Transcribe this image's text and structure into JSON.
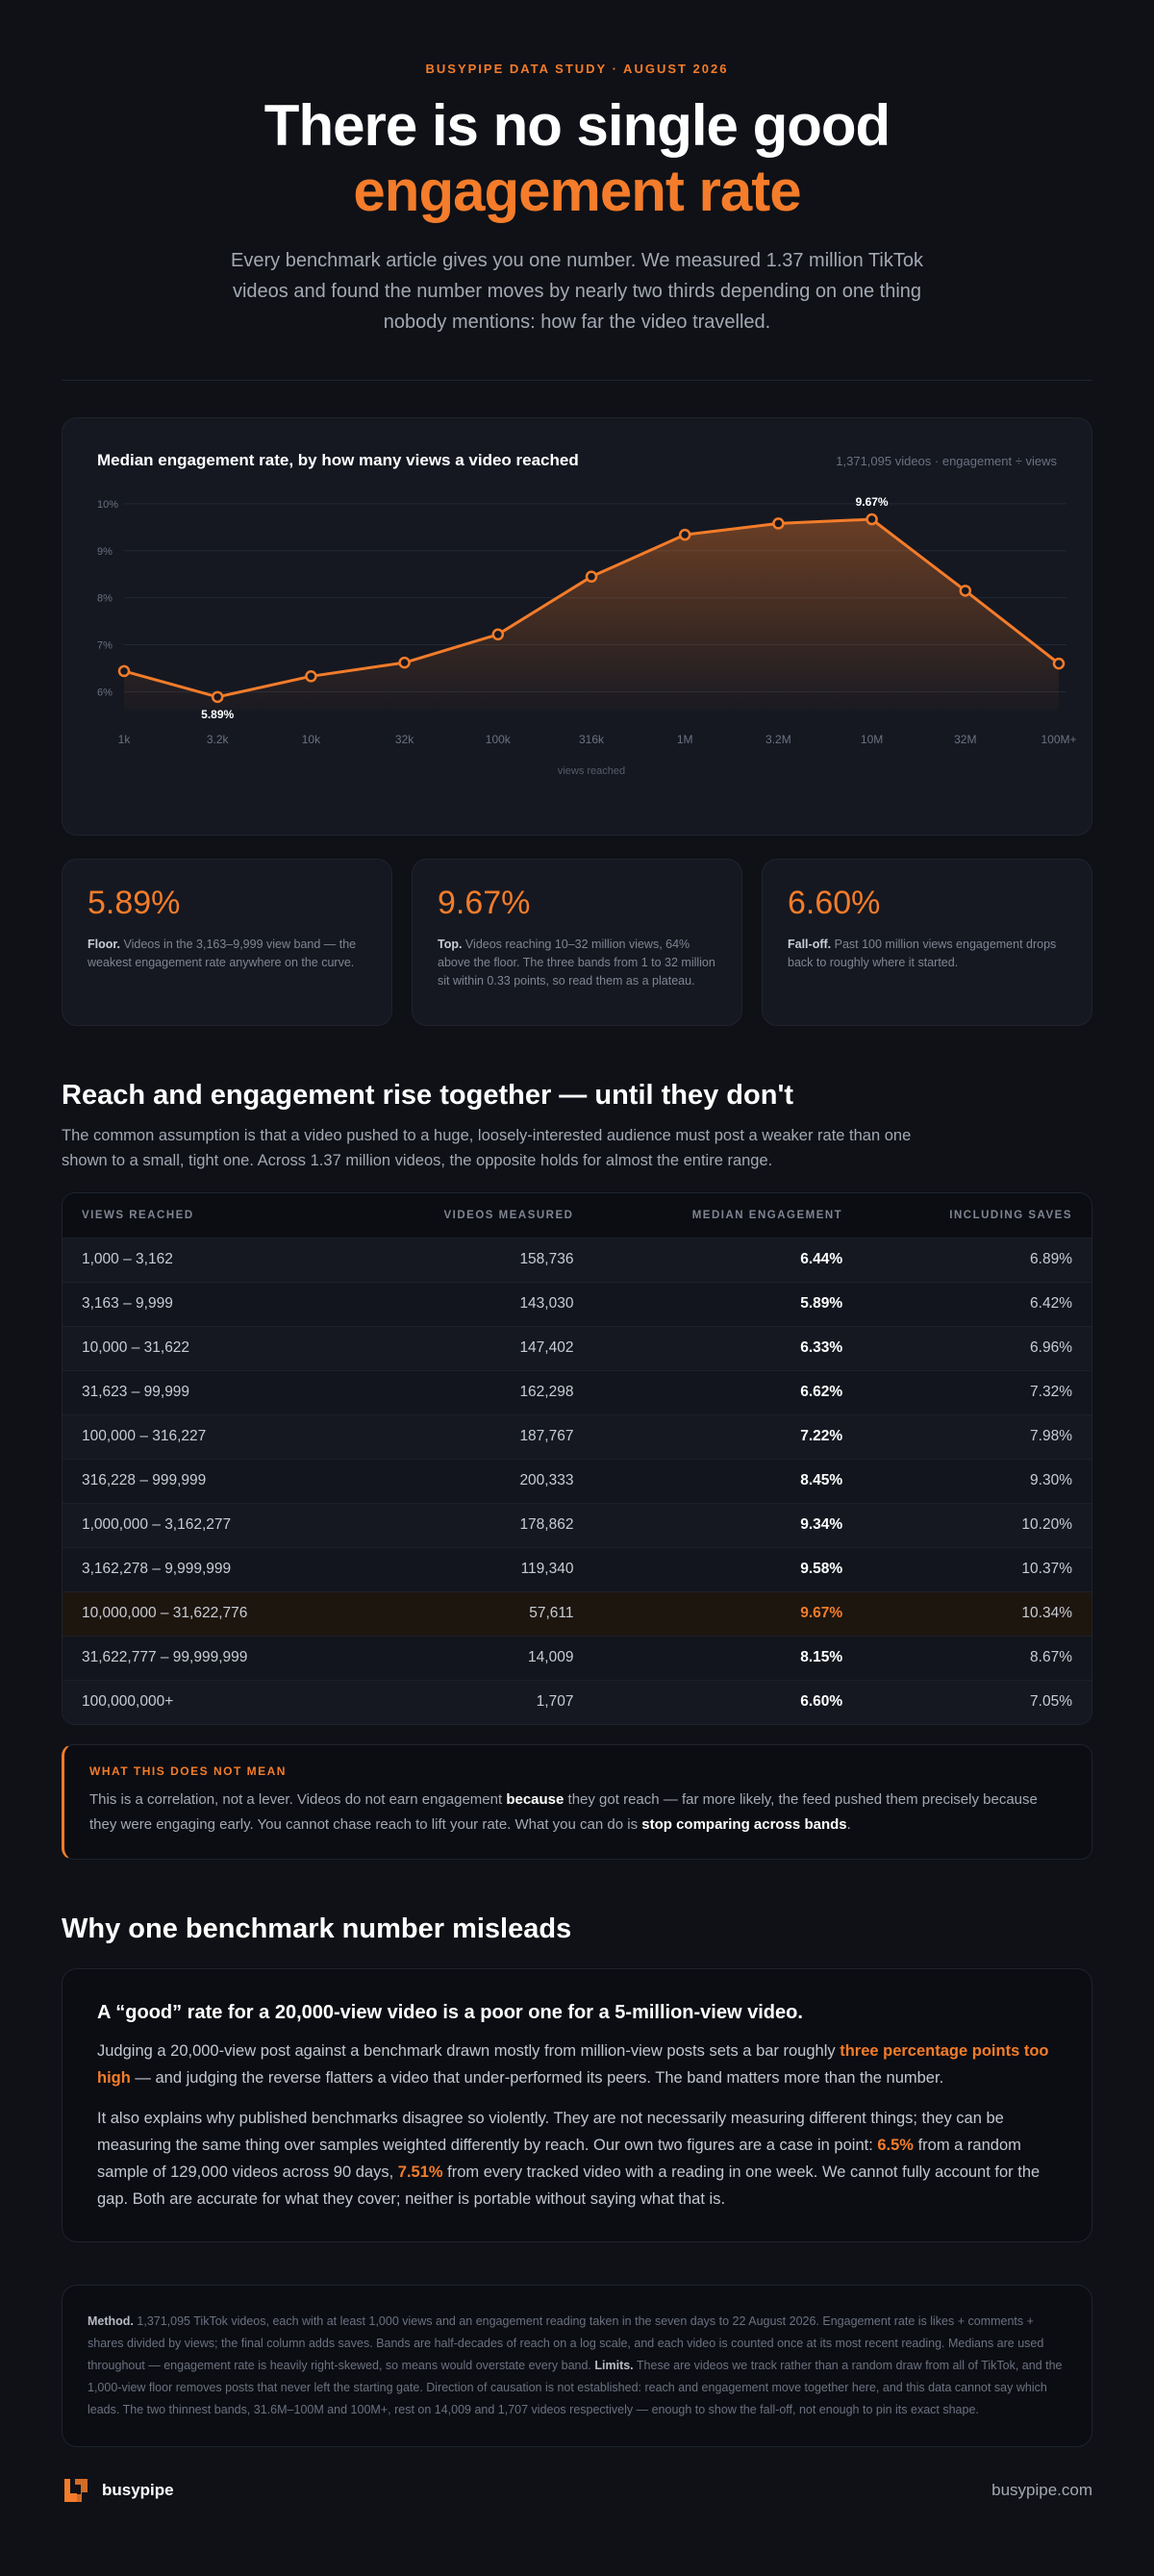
{
  "header": {
    "eyebrow": "BUSYPIPE DATA STUDY · AUGUST 2026",
    "title_line1": "There is no single good",
    "title_line2": "engagement rate",
    "lede": "Every benchmark article gives you one number. We measured 1.37 million TikTok videos and found the number moves by nearly two thirds depending on one thing nobody mentions: how far the video travelled."
  },
  "chart_card": {
    "title": "Median engagement rate, by how many views a video reached",
    "note": "1,371,095 videos · engagement ÷ views"
  },
  "chart_data": {
    "type": "line",
    "title": "Median engagement rate, by how many views a video reached",
    "xlabel": "views reached",
    "ylabel": "",
    "x_tick_labels": [
      "1k",
      "3.2k",
      "10k",
      "32k",
      "100k",
      "316k",
      "1M",
      "3.2M",
      "10M",
      "32M",
      "100M+"
    ],
    "y_tick_labels": [
      "6%",
      "7%",
      "8%",
      "9%",
      "10%"
    ],
    "ylim": [
      5.6,
      10.1
    ],
    "grid": true,
    "series": [
      {
        "values": [
          6.44,
          5.89,
          6.33,
          6.62,
          7.22,
          8.45,
          9.34,
          9.58,
          9.67,
          8.15,
          6.6
        ]
      }
    ],
    "annotations": [
      {
        "index": 1,
        "text": "5.89%"
      },
      {
        "index": 8,
        "text": "9.67%"
      }
    ],
    "colors": {
      "line": "#f47c2a",
      "grid": "#232834",
      "tick": "#6b7180"
    }
  },
  "stats": [
    {
      "value": "5.89%",
      "label": "Floor.",
      "text": " Videos in the 3,163–9,999 view band — the weakest engagement rate anywhere on the curve."
    },
    {
      "value": "9.67%",
      "label": "Top.",
      "text": " Videos reaching 10–32 million views, 64% above the floor. The three bands from 1 to 32 million sit within 0.33 points, so read them as a plateau."
    },
    {
      "value": "6.60%",
      "label": "Fall-off.",
      "text": " Past 100 million views engagement drops back to roughly where it started."
    }
  ],
  "section1": {
    "title": "Reach and engagement rise together — until they don't",
    "lede": "The common assumption is that a video pushed to a huge, loosely-interested audience must post a weaker rate than one shown to a small, tight one. Across 1.37 million videos, the opposite holds for almost the entire range."
  },
  "table": {
    "headers": [
      "VIEWS REACHED",
      "VIDEOS MEASURED",
      "MEDIAN ENGAGEMENT",
      "INCLUDING SAVES"
    ],
    "rows": [
      {
        "band": "1,000 – 3,162",
        "videos": "158,736",
        "median": "6.44%",
        "saves": "6.89%"
      },
      {
        "band": "3,163 – 9,999",
        "videos": "143,030",
        "median": "5.89%",
        "saves": "6.42%"
      },
      {
        "band": "10,000 – 31,622",
        "videos": "147,402",
        "median": "6.33%",
        "saves": "6.96%"
      },
      {
        "band": "31,623 – 99,999",
        "videos": "162,298",
        "median": "6.62%",
        "saves": "7.32%"
      },
      {
        "band": "100,000 – 316,227",
        "videos": "187,767",
        "median": "7.22%",
        "saves": "7.98%"
      },
      {
        "band": "316,228 – 999,999",
        "videos": "200,333",
        "median": "8.45%",
        "saves": "9.30%"
      },
      {
        "band": "1,000,000 – 3,162,277",
        "videos": "178,862",
        "median": "9.34%",
        "saves": "10.20%"
      },
      {
        "band": "3,162,278 – 9,999,999",
        "videos": "119,340",
        "median": "9.58%",
        "saves": "10.37%"
      },
      {
        "band": "10,000,000 – 31,622,776",
        "videos": "57,611",
        "median": "9.67%",
        "saves": "10.34%",
        "highlight": true
      },
      {
        "band": "31,622,777 – 99,999,999",
        "videos": "14,009",
        "median": "8.15%",
        "saves": "8.67%"
      },
      {
        "band": "100,000,000+",
        "videos": "1,707",
        "median": "6.60%",
        "saves": "7.05%"
      }
    ]
  },
  "callout": {
    "label": "WHAT THIS DOES NOT MEAN",
    "part1": "This is a correlation, not a lever. Videos do not earn engagement ",
    "bold1": "because",
    "part2": " they got reach — far more likely, the feed pushed them precisely because they were engaging early. You cannot chase reach to lift your rate. What you can do is ",
    "bold2": "stop comparing across bands",
    "part3": "."
  },
  "section2": {
    "title": "Why one benchmark number misleads"
  },
  "essay": {
    "title": "A “good” rate for a 20,000-view video is a poor one for a 5-million-view video.",
    "p1_a": "Judging a 20,000-view post against a benchmark drawn mostly from million-view posts sets a bar roughly ",
    "p1_hot": "three percentage points too high",
    "p1_b": " — and judging the reverse flatters a video that under-performed its peers. The band matters more than the number.",
    "p2_a": "It also explains why published benchmarks disagree so violently. They are not necessarily measuring different things; they can be measuring the same thing over samples weighted differently by reach. Our own two figures are a case in point: ",
    "p2_hot1": "6.5%",
    "p2_b": " from a random sample of 129,000 videos across 90 days, ",
    "p2_hot2": "7.51%",
    "p2_c": " from every tracked video with a reading in one week. We cannot fully account for the gap. Both are accurate for what they cover; neither is portable without saying what that is."
  },
  "method": {
    "label1": "Method.",
    "text1": " 1,371,095 TikTok videos, each with at least 1,000 views and an engagement reading taken in the seven days to 22 August 2026. Engagement rate is likes + comments + shares divided by views; the final column adds saves. Bands are half-decades of reach on a log scale, and each video is counted once at its most recent reading. Medians are used throughout — engagement rate is heavily right-skewed, so means would overstate every band. ",
    "label2": "Limits.",
    "text2": " These are videos we track rather than a random draw from all of TikTok, and the 1,000-view floor removes posts that never left the starting gate. Direction of causation is not established: reach and engagement move together here, and this data cannot say which leads. The two thinnest bands, 31.6M–100M and 100M+, rest on 14,009 and 1,707 videos respectively — enough to show the fall-off, not enough to pin its exact shape."
  },
  "footer": {
    "brand": "busypipe",
    "site": "busypipe.com",
    "logo_icon": "busypipe-logo-icon"
  }
}
